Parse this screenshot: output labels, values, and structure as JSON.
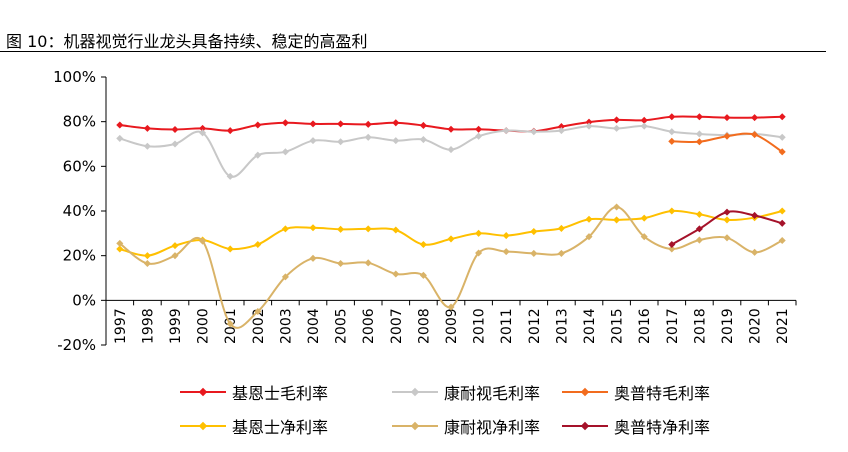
{
  "figure": {
    "title": "图  10：机器视觉行业龙头具备持续、稳定的高盈利"
  },
  "chart_data": {
    "type": "line",
    "categories": [
      "1997",
      "1998",
      "1999",
      "2000",
      "2001",
      "2002",
      "2003",
      "2004",
      "2005",
      "2006",
      "2007",
      "2008",
      "2009",
      "2010",
      "2011",
      "2012",
      "2013",
      "2014",
      "2015",
      "2016",
      "2017",
      "2018",
      "2019",
      "2020",
      "2021"
    ],
    "ylim": [
      -20,
      100
    ],
    "y_ticks": [
      -20,
      0,
      20,
      40,
      60,
      80,
      100
    ],
    "y_tick_labels": [
      "-20%",
      "0%",
      "20%",
      "40%",
      "60%",
      "80%",
      "100%"
    ],
    "grid": false,
    "legend_position": "bottom",
    "series": [
      {
        "name": "基恩士毛利率",
        "color": "#E8191F",
        "values": [
          78.5,
          77,
          76.5,
          77,
          76,
          78.5,
          79.5,
          79,
          79,
          78.8,
          79.5,
          78.3,
          76.6,
          76.6,
          76,
          75.7,
          77.8,
          79.8,
          80.8,
          80.6,
          82.2,
          82.2,
          81.8,
          81.8,
          82.2
        ]
      },
      {
        "name": "康耐视毛利率",
        "color": "#C8C8C8",
        "values": [
          72.5,
          69,
          70,
          75,
          55.5,
          65,
          66.5,
          71.5,
          71,
          73,
          71.5,
          72,
          67.5,
          73.5,
          76,
          75.5,
          76,
          78,
          77,
          78,
          75.5,
          74.5,
          74,
          74.5,
          73
        ]
      },
      {
        "name": "奥普特毛利率",
        "color": "#F26C1E",
        "values": [
          null,
          null,
          null,
          null,
          null,
          null,
          null,
          null,
          null,
          null,
          null,
          null,
          null,
          null,
          null,
          null,
          null,
          null,
          null,
          null,
          71.2,
          71,
          73.5,
          74.2,
          66.5
        ]
      },
      {
        "name": "基恩士净利率",
        "color": "#FFC000",
        "values": [
          23,
          20,
          24.5,
          27,
          23,
          25,
          32,
          32.5,
          31.8,
          32,
          31.5,
          25,
          27.5,
          30,
          29,
          30.8,
          32.2,
          36.3,
          36,
          36.8,
          40,
          38.5,
          36,
          37,
          40
        ]
      },
      {
        "name": "康耐视净利率",
        "color": "#D9B368",
        "values": [
          25.5,
          16.5,
          20,
          26.5,
          -10.5,
          -5,
          10.5,
          18.8,
          16.5,
          16.8,
          11.8,
          11.2,
          -3,
          21.2,
          21.8,
          21,
          21,
          28.5,
          41.8,
          28.5,
          23,
          27,
          28,
          21.5,
          26.8
        ]
      },
      {
        "name": "奥普特净利率",
        "color": "#A5122A",
        "values": [
          null,
          null,
          null,
          null,
          null,
          null,
          null,
          null,
          null,
          null,
          null,
          null,
          null,
          null,
          null,
          null,
          null,
          null,
          null,
          null,
          25,
          32,
          39.5,
          38,
          34.5
        ]
      }
    ]
  }
}
